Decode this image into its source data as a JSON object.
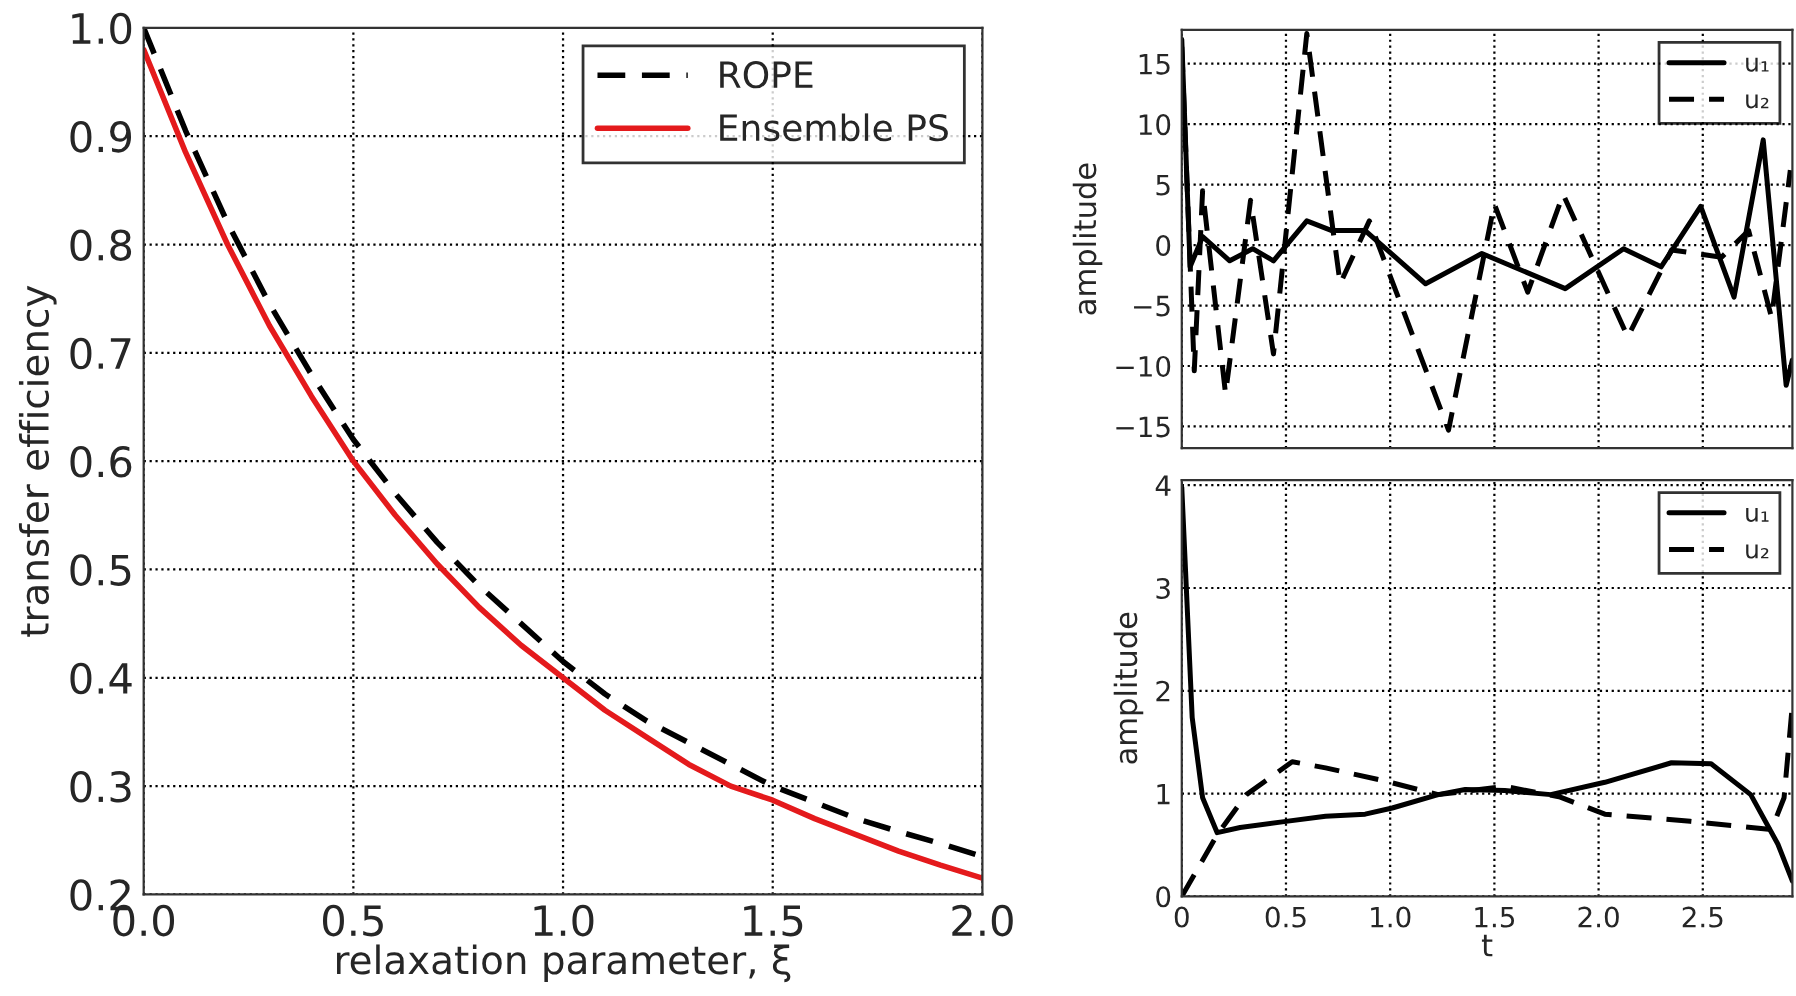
{
  "chart_data": [
    {
      "type": "line",
      "xlabel": "relaxation parameter, ξ",
      "ylabel": "transfer efficiency",
      "xlim": [
        0,
        2
      ],
      "ylim": [
        0.2,
        1.0
      ],
      "xticks": [
        {
          "value": 0,
          "label": "0.0"
        },
        0.5,
        {
          "value": 1,
          "label": "1.0"
        },
        1.5,
        {
          "value": 2,
          "label": "2.0"
        }
      ],
      "yticks": [
        0.2,
        0.3,
        0.4,
        0.5,
        0.6,
        0.7,
        0.8,
        0.9,
        {
          "value": 1,
          "label": "1.0"
        }
      ],
      "grid": true,
      "legend": "top right",
      "x": [
        0,
        0.1,
        0.2,
        0.3,
        0.4,
        0.5,
        0.6,
        0.7,
        0.8,
        0.9,
        1.0,
        1.1,
        1.2,
        1.3,
        1.4,
        1.5,
        1.6,
        1.7,
        1.8,
        1.9,
        2.0
      ],
      "series": [
        {
          "name": "ROPE",
          "color": "#000000",
          "line_style": "dashed",
          "values": [
            1.0,
            0.905,
            0.82,
            0.745,
            0.68,
            0.62,
            0.57,
            0.525,
            0.485,
            0.45,
            0.415,
            0.385,
            0.36,
            0.34,
            0.32,
            0.3,
            0.285,
            0.27,
            0.258,
            0.247,
            0.235
          ]
        },
        {
          "name": "Ensemble PS",
          "color": "#e41a1c",
          "line_style": "solid",
          "values": [
            0.98,
            0.885,
            0.8,
            0.725,
            0.66,
            0.6,
            0.55,
            0.505,
            0.465,
            0.43,
            0.4,
            0.37,
            0.345,
            0.32,
            0.3,
            0.287,
            0.27,
            0.255,
            0.24,
            0.227,
            0.215
          ]
        }
      ]
    },
    {
      "type": "line",
      "ylabel": "amplitude",
      "xlim": [
        0,
        2.93
      ],
      "ylim": [
        -16.8,
        17.8
      ],
      "xticks": [
        0,
        0.5,
        1,
        1.5,
        2,
        2.5
      ],
      "yticks": [
        {
          "value": -15,
          "label": "−15"
        },
        {
          "value": -10,
          "label": "−10"
        },
        {
          "value": -5,
          "label": "−5"
        },
        0,
        5,
        10,
        15
      ],
      "grid": true,
      "legend": "top right",
      "tick_labels": "y",
      "series": [
        {
          "name": "u₁",
          "color": "#000000",
          "line_style": "solid",
          "x": [
            0,
            0.04,
            0.1,
            0.23,
            0.34,
            0.44,
            0.6,
            0.72,
            0.88,
            1.17,
            1.44,
            1.84,
            2.12,
            2.3,
            2.49,
            2.65,
            2.79,
            2.9,
            2.93
          ],
          "values": [
            17,
            -1.8,
            0.7,
            -1.3,
            -0.3,
            -1.3,
            2.0,
            1.2,
            1.2,
            -3.2,
            -0.7,
            -3.6,
            -0.3,
            -1.8,
            3.2,
            -4.3,
            8.7,
            -11.6,
            -9.5
          ]
        },
        {
          "name": "u₂",
          "color": "#000000",
          "line_style": "dashed",
          "x": [
            0,
            0.06,
            0.1,
            0.21,
            0.33,
            0.44,
            0.6,
            0.76,
            0.9,
            1.28,
            1.5,
            1.66,
            1.83,
            2.14,
            2.35,
            2.59,
            2.72,
            2.83,
            2.92
          ],
          "values": [
            16.4,
            -10.4,
            4.5,
            -12.3,
            3.7,
            -9,
            17.5,
            -3.2,
            2.0,
            -15.3,
            3.4,
            -3.9,
            4.2,
            -7.6,
            -0.4,
            -1.0,
            1.2,
            -6,
            6.2
          ]
        }
      ]
    },
    {
      "type": "line",
      "xlabel": "t",
      "ylabel": "amplitude",
      "xlim": [
        0,
        2.93
      ],
      "ylim": [
        0,
        4.05
      ],
      "xticks": [
        0,
        0.5,
        {
          "value": 1,
          "label": "1.0"
        },
        1.5,
        {
          "value": 2,
          "label": "2.0"
        },
        2.5
      ],
      "yticks": [
        0,
        1,
        2,
        3,
        4
      ],
      "grid": true,
      "legend": "top right",
      "series": [
        {
          "name": "u₁",
          "color": "#000000",
          "line_style": "solid",
          "x": [
            0,
            0.05,
            0.1,
            0.17,
            0.28,
            0.5,
            0.69,
            0.88,
            1.01,
            1.23,
            1.36,
            1.55,
            1.77,
            2.03,
            2.35,
            2.54,
            2.73,
            2.86,
            2.93
          ],
          "values": [
            3.98,
            1.74,
            0.96,
            0.62,
            0.67,
            0.73,
            0.78,
            0.8,
            0.86,
            0.99,
            1.04,
            1.03,
            0.99,
            1.11,
            1.3,
            1.29,
            0.99,
            0.51,
            0.15
          ]
        },
        {
          "name": "u₂",
          "color": "#000000",
          "line_style": "dashed",
          "x": [
            0,
            0.17,
            0.31,
            0.53,
            0.69,
            0.98,
            1.23,
            1.55,
            1.81,
            2.03,
            2.44,
            2.83,
            2.89,
            2.93
          ],
          "values": [
            0,
            0.6,
            0.99,
            1.31,
            1.25,
            1.12,
            0.99,
            1.07,
            0.97,
            0.8,
            0.73,
            0.65,
            0.96,
            1.87
          ]
        }
      ]
    }
  ]
}
